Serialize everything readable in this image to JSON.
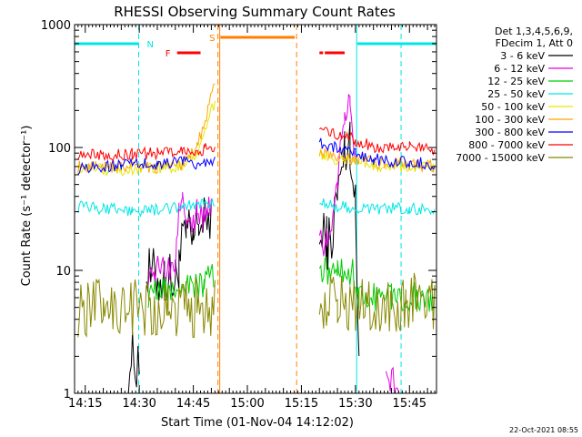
{
  "chart_data": {
    "type": "line",
    "title": "RHESSI Observing Summary Count Rates",
    "xlabel": "Start Time (01-Nov-04 14:12:02)",
    "ylabel": "Count Rate (s⁻¹ detector⁻¹)",
    "ylog": true,
    "xlim": [
      "14:12:02",
      "15:52:30"
    ],
    "ylim": [
      1,
      1000
    ],
    "x_ticks": [
      "14:15",
      "14:30",
      "14:45",
      "15:00",
      "15:15",
      "15:30",
      "15:45"
    ],
    "y_ticks": [
      "1",
      "10",
      "100",
      "1000"
    ],
    "legend_title": [
      "Det 1,3,4,5,6,9,",
      "FDecim 1, Att 0"
    ],
    "legend_position": "right",
    "footer": "22-Oct-2021 08:55",
    "series": [
      {
        "name": "3 - 6 keV",
        "color": "#000000",
        "points": [
          [
            "14:12:02",
            null
          ],
          [
            "14:26:00",
            null
          ],
          [
            "14:27:00",
            1.8
          ],
          [
            "14:30:00",
            1.9
          ],
          [
            "14:31:30",
            null
          ],
          [
            "14:32:00",
            9.0
          ],
          [
            "14:37:00",
            8.5
          ],
          [
            "14:40:00",
            8.0
          ],
          [
            "14:41:00",
            12
          ],
          [
            "14:43:00",
            19
          ],
          [
            "14:45:00",
            17
          ],
          [
            "14:46:30",
            26
          ],
          [
            "14:48:00",
            23
          ],
          [
            "14:50:00",
            30
          ],
          [
            "14:51:00",
            null
          ],
          [
            "15:19:00",
            null
          ],
          [
            "15:20:00",
            16
          ],
          [
            "15:22:00",
            18
          ],
          [
            "15:23:00",
            16
          ],
          [
            "15:25:00",
            40
          ],
          [
            "15:27:00",
            90
          ],
          [
            "15:28:30",
            120
          ],
          [
            "15:30:00",
            30
          ],
          [
            "15:31:00",
            1.8
          ],
          [
            "15:33:00",
            null
          ],
          [
            "15:52:30",
            null
          ]
        ]
      },
      {
        "name": "6 - 12 keV",
        "color": "#e600e6",
        "points": [
          [
            "14:12:02",
            null
          ],
          [
            "14:32:00",
            null
          ],
          [
            "14:32:30",
            10
          ],
          [
            "14:37:00",
            10
          ],
          [
            "14:40:00",
            11
          ],
          [
            "14:41:00",
            30
          ],
          [
            "14:42:00",
            45
          ],
          [
            "14:43:00",
            30
          ],
          [
            "14:45:00",
            22
          ],
          [
            "14:46:00",
            35
          ],
          [
            "14:47:30",
            26
          ],
          [
            "14:50:00",
            32
          ],
          [
            "14:51:00",
            null
          ],
          [
            "15:19:00",
            null
          ],
          [
            "15:20:00",
            16
          ],
          [
            "15:22:00",
            18
          ],
          [
            "15:23:00",
            16
          ],
          [
            "15:25:00",
            60
          ],
          [
            "15:27:00",
            170
          ],
          [
            "15:28:30",
            250
          ],
          [
            "15:30:00",
            90
          ],
          [
            "15:31:00",
            null
          ],
          [
            "15:38:00",
            null
          ],
          [
            "15:38:30",
            1.2
          ],
          [
            "15:42:00",
            1.3
          ],
          [
            "15:44:00",
            null
          ],
          [
            "15:52:30",
            null
          ]
        ]
      },
      {
        "name": "12 - 25 keV",
        "color": "#00cc00",
        "points": [
          [
            "14:12:02",
            null
          ],
          [
            "14:32:00",
            null
          ],
          [
            "14:32:30",
            6.5
          ],
          [
            "14:38:00",
            6.8
          ],
          [
            "14:43:00",
            7.2
          ],
          [
            "14:48:00",
            7.8
          ],
          [
            "14:51:00",
            9.5
          ],
          [
            "14:51:30",
            null
          ],
          [
            "15:19:00",
            null
          ],
          [
            "15:20:00",
            10
          ],
          [
            "15:25:00",
            9.5
          ],
          [
            "15:30:00",
            9.5
          ],
          [
            "15:31:00",
            6
          ],
          [
            "15:40:00",
            6.2
          ],
          [
            "15:52:00",
            6.0
          ],
          [
            "15:52:30",
            null
          ]
        ]
      },
      {
        "name": "25 - 50 keV",
        "color": "#00e6e6",
        "points": [
          [
            "14:12:02",
            null
          ],
          [
            "14:13:00",
            33
          ],
          [
            "14:20:00",
            32
          ],
          [
            "14:28:00",
            30
          ],
          [
            "14:35:00",
            31
          ],
          [
            "14:42:00",
            33
          ],
          [
            "14:48:00",
            34
          ],
          [
            "14:51:00",
            36
          ],
          [
            "14:51:30",
            null
          ],
          [
            "15:19:00",
            null
          ],
          [
            "15:20:00",
            35
          ],
          [
            "15:25:00",
            33
          ],
          [
            "15:30:00",
            33
          ],
          [
            "15:35:00",
            32
          ],
          [
            "15:45:00",
            32
          ],
          [
            "15:52:00",
            31
          ],
          [
            "15:52:30",
            null
          ]
        ]
      },
      {
        "name": "50 - 100 keV",
        "color": "#e6e600",
        "points": [
          [
            "14:12:02",
            null
          ],
          [
            "14:13:00",
            68
          ],
          [
            "14:25:00",
            66
          ],
          [
            "14:35:00",
            67
          ],
          [
            "14:42:00",
            70
          ],
          [
            "14:46:00",
            90
          ],
          [
            "14:49:00",
            160
          ],
          [
            "14:51:00",
            240
          ],
          [
            "14:51:30",
            null
          ],
          [
            "15:19:00",
            null
          ],
          [
            "15:20:00",
            88
          ],
          [
            "15:25:00",
            80
          ],
          [
            "15:30:00",
            76
          ],
          [
            "15:35:00",
            72
          ],
          [
            "15:45:00",
            70
          ],
          [
            "15:52:00",
            68
          ],
          [
            "15:52:30",
            null
          ]
        ]
      },
      {
        "name": "100 - 300 keV",
        "color": "#ffa500",
        "points": [
          [
            "14:12:02",
            null
          ],
          [
            "14:13:00",
            70
          ],
          [
            "14:25:00",
            68
          ],
          [
            "14:35:00",
            69
          ],
          [
            "14:42:00",
            72
          ],
          [
            "14:46:00",
            100
          ],
          [
            "14:49:00",
            200
          ],
          [
            "14:51:00",
            330
          ],
          [
            "14:51:30",
            null
          ],
          [
            "15:19:00",
            null
          ],
          [
            "15:20:00",
            95
          ],
          [
            "15:25:00",
            85
          ],
          [
            "15:30:00",
            80
          ],
          [
            "15:35:00",
            76
          ],
          [
            "15:45:00",
            73
          ],
          [
            "15:52:00",
            70
          ],
          [
            "15:52:30",
            null
          ]
        ]
      },
      {
        "name": "300 - 800 keV",
        "color": "#0000ff",
        "points": [
          [
            "14:12:02",
            null
          ],
          [
            "14:13:00",
            68
          ],
          [
            "14:25:00",
            72
          ],
          [
            "14:35:00",
            74
          ],
          [
            "14:42:00",
            76
          ],
          [
            "14:48:00",
            74
          ],
          [
            "14:51:00",
            80
          ],
          [
            "14:51:30",
            null
          ],
          [
            "15:19:00",
            null
          ],
          [
            "15:20:00",
            110
          ],
          [
            "15:25:00",
            98
          ],
          [
            "15:30:00",
            88
          ],
          [
            "15:35:00",
            80
          ],
          [
            "15:45:00",
            76
          ],
          [
            "15:52:00",
            73
          ],
          [
            "15:52:30",
            null
          ]
        ]
      },
      {
        "name": "800 - 7000 keV",
        "color": "#ff0000",
        "points": [
          [
            "14:12:02",
            null
          ],
          [
            "14:13:00",
            90
          ],
          [
            "14:20:00",
            85
          ],
          [
            "14:28:00",
            88
          ],
          [
            "14:35:00",
            90
          ],
          [
            "14:42:00",
            95
          ],
          [
            "14:48:00",
            96
          ],
          [
            "14:51:00",
            100
          ],
          [
            "14:51:30",
            null
          ],
          [
            "15:19:00",
            null
          ],
          [
            "15:20:00",
            140
          ],
          [
            "15:25:00",
            125
          ],
          [
            "15:30:00",
            115
          ],
          [
            "15:35:00",
            102
          ],
          [
            "15:45:00",
            100
          ],
          [
            "15:52:00",
            96
          ],
          [
            "15:52:30",
            null
          ]
        ]
      },
      {
        "name": "7000 - 15000 keV",
        "color": "#888800",
        "points": [
          [
            "14:12:02",
            null
          ],
          [
            "14:13:00",
            5.0
          ],
          [
            "14:20:00",
            5.0
          ],
          [
            "14:30:00",
            5.2
          ],
          [
            "14:38:00",
            5.0
          ],
          [
            "14:46:00",
            5.0
          ],
          [
            "14:51:00",
            5.2
          ],
          [
            "14:51:30",
            null
          ],
          [
            "15:19:00",
            null
          ],
          [
            "15:20:00",
            5.0
          ],
          [
            "15:25:00",
            5.2
          ],
          [
            "15:30:00",
            5.0
          ],
          [
            "15:36:00",
            5.5
          ],
          [
            "15:44:00",
            5.6
          ],
          [
            "15:52:00",
            5.8
          ],
          [
            "15:52:30",
            null
          ]
        ]
      }
    ],
    "flags": [
      {
        "label": "N",
        "color": "#00e6e6",
        "segments": [
          [
            "14:12:02",
            "14:29:50"
          ],
          [
            "15:30:30",
            "15:52:30"
          ]
        ]
      },
      {
        "label": "F",
        "color": "#ff0000",
        "segments": [
          [
            "14:40:30",
            "14:47:00"
          ],
          [
            "15:20:00",
            "15:21:00"
          ],
          [
            "15:21:30",
            "15:27:00"
          ]
        ]
      },
      {
        "label": "S",
        "color": "#ff8000",
        "segments": [
          [
            "14:52:30",
            "15:13:10"
          ]
        ]
      }
    ],
    "markers": [
      {
        "time": "14:29:50",
        "color": "#00e6e6",
        "style": "dashed"
      },
      {
        "time": "14:51:50",
        "color": "#ff8000",
        "style": "dashed"
      },
      {
        "time": "14:52:20",
        "color": "#ff8000",
        "style": "solid"
      },
      {
        "time": "15:13:40",
        "color": "#ff8000",
        "style": "dashed"
      },
      {
        "time": "15:30:20",
        "color": "#00e6e6",
        "style": "solid"
      },
      {
        "time": "15:42:40",
        "color": "#00e6e6",
        "style": "dashed"
      }
    ]
  }
}
